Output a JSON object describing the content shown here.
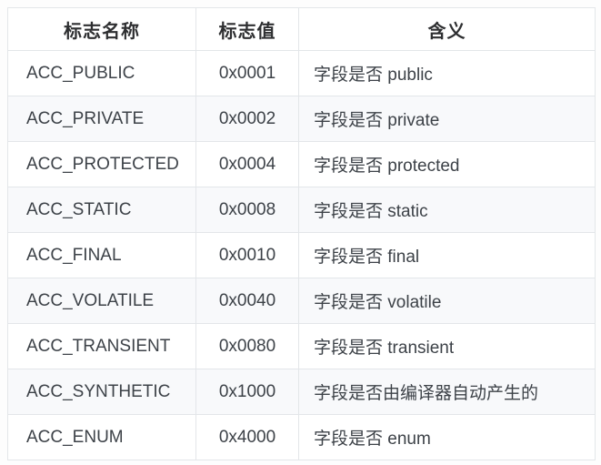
{
  "colors": {
    "page_background": "#fdfdfd",
    "border": "#e3e6e9",
    "stripe_row_background": "#f8f9fb",
    "header_text": "#2e2f31",
    "body_text": "#3d4248"
  },
  "table": {
    "headers": {
      "name": "标志名称",
      "value": "标志值",
      "meaning": "含义"
    },
    "rows": [
      {
        "name": "ACC_PUBLIC",
        "value": "0x0001",
        "meaning": "字段是否 public"
      },
      {
        "name": "ACC_PRIVATE",
        "value": "0x0002",
        "meaning": "字段是否 private"
      },
      {
        "name": "ACC_PROTECTED",
        "value": "0x0004",
        "meaning": "字段是否 protected"
      },
      {
        "name": "ACC_STATIC",
        "value": "0x0008",
        "meaning": "字段是否 static"
      },
      {
        "name": "ACC_FINAL",
        "value": "0x0010",
        "meaning": "字段是否 final"
      },
      {
        "name": "ACC_VOLATILE",
        "value": "0x0040",
        "meaning": "字段是否 volatile"
      },
      {
        "name": "ACC_TRANSIENT",
        "value": "0x0080",
        "meaning": "字段是否 transient"
      },
      {
        "name": "ACC_SYNTHETIC",
        "value": "0x1000",
        "meaning": "字段是否由编译器自动产生的"
      },
      {
        "name": "ACC_ENUM",
        "value": "0x4000",
        "meaning": "字段是否 enum"
      }
    ]
  }
}
